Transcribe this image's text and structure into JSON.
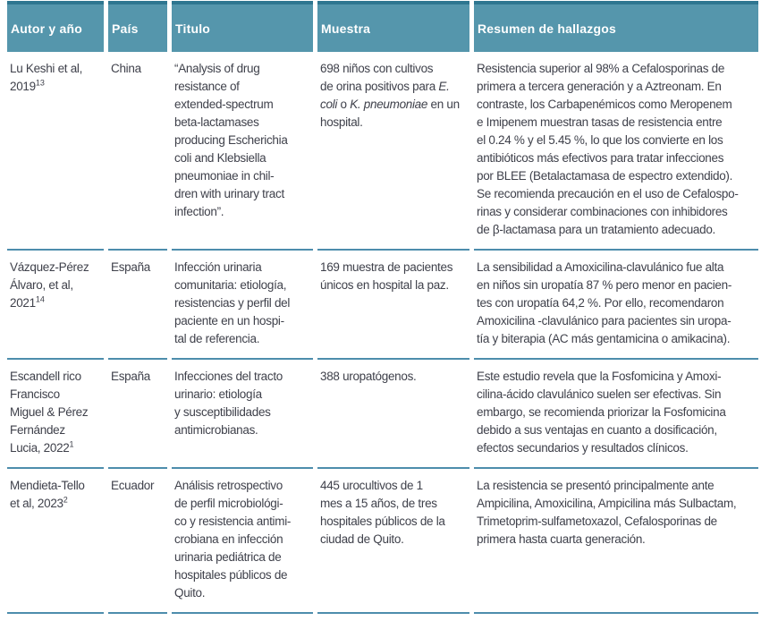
{
  "colors": {
    "header-bg": "#5596ac",
    "header-top": "#2e7690",
    "divider": "#4d8dac",
    "text-color": "#3f414b"
  },
  "table": {
    "columns": [
      {
        "key": "autor",
        "label": "Autor y año"
      },
      {
        "key": "pais",
        "label": "País"
      },
      {
        "key": "titulo",
        "label": "Titulo"
      },
      {
        "key": "muestra",
        "label": "Muestra"
      },
      {
        "key": "resumen",
        "label": "Resumen de hallazgos"
      }
    ],
    "rows": [
      {
        "autor": [
          {
            "t": "Lu Keshi et al,\n2019"
          },
          {
            "t": "13",
            "sup": true
          }
        ],
        "pais": [
          {
            "t": "China"
          }
        ],
        "titulo": [
          {
            "t": "“Analysis of drug\nresistance of\nextended-spectrum\nbeta-lactamases\nproducing Escherichia\ncoli and Klebsiella\npneumoniae in chil-\ndren with urinary tract\ninfection”."
          }
        ],
        "muestra": [
          {
            "t": "698 niños con cultivos\nde orina positivos para "
          },
          {
            "t": "E.\ncoli",
            "i": true
          },
          {
            "t": " o "
          },
          {
            "t": "K. pneumoniae",
            "i": true
          },
          {
            "t": " en un\nhospital."
          }
        ],
        "resumen": [
          {
            "t": "Resistencia superior al 98% a Cefalosporinas de\nprimera a tercera generación y a Aztreonam. En\ncontraste, los Carbapenémicos como Meropenem\ne Imipenem muestran tasas de resistencia entre\nel 0.24 % y el 5.45 %, lo que los convierte en los\nantibióticos más efectivos para tratar infecciones\npor BLEE (Betalactamasa de espectro extendido).\nSe recomienda precaución en el uso de Cefalospo-\nrinas y considerar combinaciones con inhibidores\nde β-lactamasa para un tratamiento adecuado."
          }
        ]
      },
      {
        "autor": [
          {
            "t": "Vázquez-Pérez\nÁlvaro, et al,\n2021"
          },
          {
            "t": "14",
            "sup": true
          }
        ],
        "pais": [
          {
            "t": "España"
          }
        ],
        "titulo": [
          {
            "t": "Infección urinaria\ncomunitaria: etiología,\nresistencias y perfil del\npaciente en un hospi-\ntal de referencia."
          }
        ],
        "muestra": [
          {
            "t": "169 muestra de pacientes\núnicos en hospital la paz."
          }
        ],
        "resumen": [
          {
            "t": "La sensibilidad a Amoxicilina-clavulánico fue alta\nen niños sin uropatía 87 % pero menor en pacien-\ntes con uropatía 64,2 %. Por ello, recomendaron\nAmoxicilina -clavulánico para pacientes sin uropa-\ntía y biterapia (AC más gentamicina o amikacina)."
          }
        ]
      },
      {
        "autor": [
          {
            "t": "Escandell rico\nFrancisco\nMiguel & Pérez\nFernández\nLucia, 2022"
          },
          {
            "t": "1",
            "sup": true
          }
        ],
        "pais": [
          {
            "t": "España"
          }
        ],
        "titulo": [
          {
            "t": "Infecciones del tracto\nurinario: etiología\ny susceptibilidades\nantimicrobianas."
          }
        ],
        "muestra": [
          {
            "t": "388 uropatógenos."
          }
        ],
        "resumen": [
          {
            "t": "Este estudio revela que la Fosfomicina y Amoxi-\ncilina-ácido clavulánico suelen ser efectivas. Sin\nembargo, se recomienda priorizar la Fosfomicina\ndebido a sus ventajas en cuanto a dosificación,\nefectos secundarios y resultados clínicos."
          }
        ]
      },
      {
        "autor": [
          {
            "t": "Mendieta-Tello\net al, 2023"
          },
          {
            "t": "2",
            "sup": true
          }
        ],
        "pais": [
          {
            "t": "Ecuador"
          }
        ],
        "titulo": [
          {
            "t": "Análisis retrospectivo\nde perfil microbiológi-\nco y resistencia antimi-\ncrobiana en infección\nurinaria pediátrica de\nhospitales públicos de\nQuito."
          }
        ],
        "muestra": [
          {
            "t": "445 urocultivos de 1\nmes a 15 años, de tres\nhospitales públicos de la\nciudad de Quito."
          }
        ],
        "resumen": [
          {
            "t": "La resistencia se presentó principalmente ante\nAmpicilina, Amoxicilina, Ampicilina más Sulbactam,\nTrimetoprim-sulfametoxazol, Cefalosporinas de\nprimera hasta cuarta generación."
          }
        ]
      }
    ]
  }
}
